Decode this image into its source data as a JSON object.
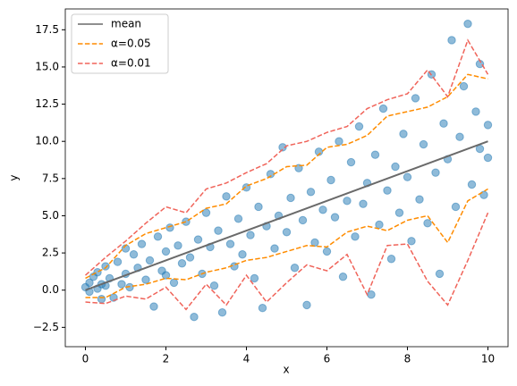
{
  "chart_data": {
    "type": "scatter",
    "xlabel": "x",
    "ylabel": "y",
    "xlim": [
      -0.5,
      10.5
    ],
    "ylim": [
      -3.8,
      18.9
    ],
    "xticks": [
      0,
      2,
      4,
      6,
      8,
      10
    ],
    "yticks": [
      {
        "value": -2.5,
        "label": "−2.5"
      },
      {
        "value": 0,
        "label": "0.0"
      },
      {
        "value": 2.5,
        "label": "2.5"
      },
      {
        "value": 5,
        "label": "5.0"
      },
      {
        "value": 7.5,
        "label": "7.5"
      },
      {
        "value": 10,
        "label": "10.0"
      },
      {
        "value": 12.5,
        "label": "12.5"
      },
      {
        "value": 15,
        "label": "15.0"
      },
      {
        "value": 17.5,
        "label": "17.5"
      }
    ],
    "legend": "upper left",
    "points": {
      "color": "#1f77b4",
      "x": [
        0.0,
        0.1,
        0.1,
        0.2,
        0.3,
        0.3,
        0.4,
        0.5,
        0.5,
        0.6,
        0.7,
        0.8,
        0.9,
        1.0,
        1.0,
        1.1,
        1.2,
        1.3,
        1.4,
        1.5,
        1.6,
        1.7,
        1.8,
        1.9,
        2.0,
        2.1,
        2.2,
        2.3,
        2.4,
        2.5,
        2.6,
        2.7,
        2.8,
        2.9,
        3.0,
        3.1,
        3.2,
        3.3,
        3.4,
        3.5,
        3.6,
        3.7,
        3.8,
        3.9,
        4.0,
        4.1,
        4.2,
        4.3,
        4.4,
        4.5,
        4.6,
        4.7,
        4.8,
        4.9,
        5.0,
        5.1,
        5.2,
        5.3,
        5.4,
        5.5,
        5.6,
        5.7,
        5.8,
        5.9,
        6.0,
        6.1,
        6.2,
        6.3,
        6.4,
        6.5,
        6.6,
        6.7,
        6.8,
        6.9,
        7.0,
        7.1,
        7.2,
        7.3,
        7.4,
        7.5,
        7.6,
        7.7,
        7.8,
        7.9,
        8.0,
        8.1,
        8.2,
        8.3,
        8.4,
        8.5,
        8.6,
        8.7,
        8.8,
        8.9,
        9.0,
        9.1,
        9.2,
        9.3,
        9.4,
        9.5,
        9.6,
        9.7,
        9.8,
        9.9,
        10.0,
        10.0,
        9.8,
        0.4,
        2.0
      ],
      "values": [
        0.2,
        0.5,
        -0.1,
        0.9,
        0.1,
        1.2,
        -0.6,
        1.6,
        0.3,
        0.8,
        -0.5,
        1.9,
        0.4,
        2.8,
        1.1,
        0.2,
        2.4,
        1.5,
        3.1,
        0.7,
        2.0,
        -1.1,
        3.6,
        1.3,
        2.6,
        4.2,
        0.5,
        3.0,
        1.8,
        4.6,
        2.2,
        -1.8,
        3.4,
        1.1,
        5.2,
        2.9,
        0.3,
        4.0,
        -1.5,
        6.3,
        3.1,
        1.6,
        4.8,
        2.4,
        6.9,
        3.7,
        0.8,
        5.6,
        -1.2,
        4.3,
        7.8,
        2.8,
        5.0,
        9.6,
        3.9,
        6.2,
        1.5,
        8.2,
        4.7,
        -1.0,
        6.6,
        3.2,
        9.3,
        5.4,
        2.6,
        7.4,
        4.9,
        10.0,
        0.9,
        6.0,
        8.6,
        3.6,
        11.0,
        5.8,
        7.2,
        -0.3,
        9.1,
        4.4,
        12.2,
        6.7,
        2.1,
        8.3,
        5.2,
        10.5,
        7.6,
        3.3,
        12.9,
        6.1,
        9.8,
        4.5,
        14.5,
        7.9,
        1.1,
        11.2,
        8.8,
        16.8,
        5.6,
        10.3,
        13.7,
        17.9,
        7.1,
        12.0,
        9.5,
        6.4,
        11.1,
        8.9,
        15.2,
        0.4,
        1.0
      ]
    },
    "series": [
      {
        "name": "mean",
        "color": "#6a6a6a",
        "x": [
          0,
          10
        ],
        "values": [
          0,
          10
        ]
      },
      {
        "name": "α=0.05",
        "color": "#ff8c00",
        "x": [
          0,
          0.5,
          1,
          1.5,
          2,
          2.5,
          3,
          3.5,
          4,
          4.5,
          5,
          5.5,
          6,
          6.5,
          7,
          7.5,
          8,
          8.5,
          9,
          9.5,
          10
        ],
        "upper": [
          0.8,
          1.5,
          3.0,
          3.8,
          4.2,
          4.6,
          5.5,
          5.8,
          7.0,
          7.5,
          8.3,
          8.4,
          9.6,
          9.8,
          10.4,
          11.7,
          12.0,
          12.3,
          13.0,
          14.5,
          14.2
        ],
        "lower": [
          -0.5,
          -0.5,
          0.2,
          0.4,
          0.8,
          0.7,
          1.2,
          1.5,
          2.0,
          2.2,
          2.6,
          3.0,
          2.9,
          3.9,
          4.3,
          4.0,
          4.7,
          5.0,
          3.2,
          6.0,
          6.8
        ]
      },
      {
        "name": "α=0.01",
        "color": "#f0645a",
        "x": [
          0,
          0.5,
          1,
          1.5,
          2,
          2.5,
          3,
          3.5,
          4,
          4.5,
          5,
          5.5,
          6,
          6.5,
          7,
          7.5,
          8,
          8.5,
          9,
          9.5,
          10
        ],
        "upper": [
          1.0,
          2.2,
          3.3,
          4.5,
          5.6,
          5.2,
          6.8,
          7.2,
          7.9,
          8.5,
          9.7,
          10.0,
          10.6,
          11.0,
          12.2,
          12.8,
          13.2,
          14.8,
          13.0,
          16.8,
          14.5
        ],
        "lower": [
          -0.8,
          -0.9,
          -0.4,
          -0.6,
          0.2,
          -1.3,
          0.4,
          -1.0,
          1.0,
          -0.8,
          0.5,
          1.7,
          1.3,
          2.4,
          -0.3,
          3.0,
          3.1,
          0.6,
          -1.0,
          2.0,
          5.2
        ]
      }
    ]
  }
}
